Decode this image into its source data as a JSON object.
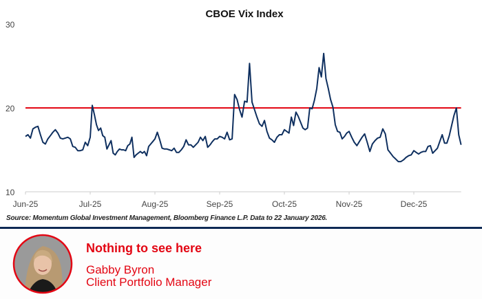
{
  "chart_data": {
    "type": "line",
    "title": "CBOE Vix Index",
    "xlabel": "",
    "ylabel": "",
    "ylim": [
      10,
      30
    ],
    "yticks": [
      "10",
      "20",
      "30"
    ],
    "x_tick_labels": [
      "Jun-25",
      "Jul-25",
      "Aug-25",
      "Sep-25",
      "Oct-25",
      "Nov-25",
      "Dec-25"
    ],
    "last_segment_extent_months": 0.73,
    "grid": false,
    "reference_line": {
      "value": 20,
      "color": "#e30613"
    },
    "series": [
      {
        "name": "CBOE Vix Index",
        "color": "#0e2f5f",
        "segments": [
          {
            "month": "Jun-25",
            "values": [
              16.6,
              16.8,
              16.4,
              17.5,
              17.7,
              17.8,
              16.8,
              15.9,
              15.7,
              16.3,
              16.7,
              17.1,
              17.4,
              17.0,
              16.4,
              16.3,
              16.4,
              16.5,
              16.3,
              15.4,
              15.3,
              14.9,
              14.9,
              15.0,
              15.9,
              15.5
            ]
          },
          {
            "month": "Jul-25",
            "values": [
              16.5,
              20.3,
              19.2,
              18.0,
              17.3,
              17.6,
              16.7,
              16.5,
              15.1,
              15.6,
              16.1,
              14.6,
              14.4,
              14.8,
              15.1,
              15.0,
              15.0,
              14.9,
              15.5,
              15.7,
              16.5,
              14.1,
              14.4,
              14.6,
              14.8,
              14.6,
              14.8,
              14.3,
              15.4,
              15.7,
              16.0
            ]
          },
          {
            "month": "Aug-25",
            "values": [
              16.3,
              17.1,
              16.2,
              15.2,
              15.1,
              15.1,
              15.0,
              14.9,
              15.2,
              14.7,
              14.7,
              15.0,
              15.4,
              16.2,
              15.6,
              15.6,
              15.3,
              15.6,
              15.9,
              16.5,
              16.1,
              16.6,
              15.3,
              15.6,
              16.0,
              16.3,
              16.3
            ]
          },
          {
            "month": "Sep-25",
            "values": [
              16.6,
              16.5,
              16.3,
              17.1,
              16.2,
              16.3,
              21.6,
              21.0,
              19.8,
              18.9,
              20.8,
              20.7,
              25.3,
              20.7,
              19.8,
              18.9,
              18.1,
              17.8,
              18.5,
              17.2,
              16.4,
              16.2,
              15.9,
              16.5,
              16.8,
              16.8
            ]
          },
          {
            "month": "Oct-25",
            "values": [
              17.4,
              17.2,
              17.0,
              18.9,
              17.9,
              19.5,
              19.0,
              18.3,
              17.6,
              17.4,
              17.6,
              20.0,
              19.9,
              20.9,
              22.3,
              24.8,
              23.7,
              26.5,
              23.5,
              22.3,
              21.0,
              20.1,
              18.0,
              17.2,
              17.1,
              16.3,
              16.6,
              17.0
            ]
          },
          {
            "month": "Nov-25",
            "values": [
              17.2,
              16.5,
              15.9,
              15.5,
              16.0,
              16.5,
              16.9,
              15.9,
              14.8,
              15.7,
              16.1,
              16.4,
              16.5,
              17.5,
              16.9,
              15.0,
              14.6,
              14.2,
              13.9,
              13.6,
              13.6,
              13.8,
              14.1,
              14.3,
              14.4
            ]
          },
          {
            "month": "Dec-25",
            "values": [
              14.9,
              14.7,
              14.5,
              14.7,
              14.8,
              14.8,
              15.4,
              15.5,
              14.6,
              14.9,
              15.2,
              16.0,
              16.8,
              15.8,
              15.8,
              16.7,
              17.9,
              19.1,
              20.0,
              16.8,
              15.6
            ]
          }
        ]
      }
    ],
    "source": "Source: Momentum Global Investment Management, Bloomberg Finance L.P. Data to 22 January 2026."
  },
  "footer": {
    "headline": "Nothing to see here",
    "name": "Gabby Byron",
    "role": "Client Portfolio Manager"
  }
}
